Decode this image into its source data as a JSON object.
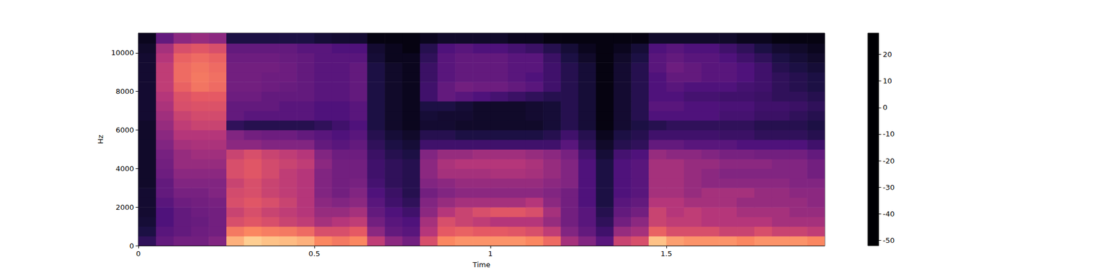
{
  "chart_data": {
    "type": "spectrogram",
    "xlabel": "Time",
    "ylabel": "Hz",
    "xlim": [
      0,
      1.95
    ],
    "ylim": [
      0,
      11025
    ],
    "xticks": [
      0,
      0.5,
      1,
      1.5
    ],
    "yticks": [
      0,
      2000,
      4000,
      6000,
      8000,
      10000
    ],
    "colorbar": {
      "range": [
        -52,
        28
      ],
      "ticks": [
        -50,
        -40,
        -30,
        -20,
        -10,
        0,
        10,
        20
      ]
    },
    "cells": {
      "time_bins": [
        0,
        0.05,
        0.1,
        0.15,
        0.2,
        0.25,
        0.3,
        0.35,
        0.4,
        0.45,
        0.5,
        0.55,
        0.6,
        0.65,
        0.7,
        0.75,
        0.8,
        0.85,
        0.9,
        0.95,
        1,
        1.05,
        1.1,
        1.15,
        1.2,
        1.25,
        1.3,
        1.35,
        1.4,
        1.45,
        1.5,
        1.55,
        1.6,
        1.65,
        1.7,
        1.75,
        1.8,
        1.85,
        1.9,
        1.95
      ],
      "freq_bins": [
        0,
        500,
        1000,
        1500,
        2000,
        2500,
        3000,
        3500,
        4000,
        4500,
        5000,
        5500,
        6000,
        6500,
        7000,
        7500,
        8000,
        8500,
        9000,
        9500,
        10000,
        10500,
        11025
      ],
      "values": [
        [
          -38,
          -28,
          -25,
          -25,
          -22,
          15,
          20,
          18,
          17,
          15,
          8,
          5,
          8,
          -10,
          -20,
          -25,
          -5,
          8,
          10,
          10,
          10,
          10,
          8,
          2,
          -15,
          -22,
          -30,
          -8,
          -5,
          18,
          12,
          10,
          10,
          10,
          8,
          10,
          10,
          10,
          8
        ],
        [
          -42,
          -30,
          -28,
          -26,
          -25,
          5,
          8,
          6,
          5,
          2,
          -5,
          -5,
          -2,
          -20,
          -28,
          -30,
          -12,
          -2,
          0,
          -2,
          -2,
          -3,
          -5,
          -10,
          -22,
          -28,
          -35,
          -18,
          -15,
          0,
          -5,
          -5,
          -5,
          -8,
          -8,
          -5,
          -8,
          -8,
          -10
        ],
        [
          -44,
          -32,
          -28,
          -27,
          -25,
          -5,
          -3,
          -5,
          -8,
          -10,
          -15,
          -12,
          -10,
          -25,
          -30,
          -32,
          -15,
          -5,
          -8,
          -10,
          -12,
          -12,
          -12,
          -18,
          -25,
          -30,
          -38,
          -25,
          -20,
          -8,
          -10,
          -10,
          -12,
          -12,
          -12,
          -12,
          -15,
          -15,
          -15
        ],
        [
          -45,
          -32,
          -28,
          -26,
          -25,
          -8,
          -5,
          -8,
          -10,
          -12,
          -18,
          -18,
          -15,
          -28,
          -32,
          -35,
          -20,
          -12,
          -8,
          -5,
          -3,
          -3,
          -5,
          -15,
          -25,
          -30,
          -40,
          -28,
          -25,
          -8,
          -12,
          -10,
          -12,
          -12,
          -15,
          -15,
          -15,
          -18,
          -18
        ],
        [
          -45,
          -30,
          -26,
          -25,
          -24,
          -5,
          -3,
          -5,
          -8,
          -12,
          -20,
          -22,
          -20,
          -30,
          -35,
          -38,
          -22,
          -18,
          -15,
          -15,
          -15,
          -15,
          -12,
          -20,
          -25,
          -32,
          -42,
          -30,
          -28,
          -12,
          -12,
          -15,
          -15,
          -15,
          -18,
          -18,
          -18,
          -18,
          -20
        ],
        [
          -45,
          -28,
          -24,
          -24,
          -22,
          -6,
          -5,
          -8,
          -10,
          -12,
          -22,
          -25,
          -22,
          -32,
          -36,
          -40,
          -25,
          -22,
          -20,
          -20,
          -20,
          -20,
          -20,
          -22,
          -25,
          -32,
          -42,
          -32,
          -30,
          -15,
          -15,
          -18,
          -15,
          -15,
          -15,
          -18,
          -18,
          -20,
          -20
        ],
        [
          -46,
          -28,
          -22,
          -22,
          -22,
          -8,
          -5,
          -8,
          -10,
          -12,
          -22,
          -25,
          -24,
          -34,
          -38,
          -40,
          -22,
          -20,
          -18,
          -18,
          -18,
          -18,
          -18,
          -20,
          -22,
          -32,
          -42,
          -32,
          -30,
          -15,
          -15,
          -18,
          -20,
          -20,
          -20,
          -20,
          -20,
          -22,
          -22
        ],
        [
          -46,
          -26,
          -20,
          -20,
          -20,
          -5,
          -3,
          -6,
          -10,
          -12,
          -22,
          -25,
          -25,
          -35,
          -38,
          -40,
          -20,
          -15,
          -15,
          -15,
          -14,
          -14,
          -15,
          -18,
          -22,
          -32,
          -42,
          -32,
          -30,
          -15,
          -15,
          -18,
          -20,
          -22,
          -22,
          -22,
          -22,
          -22,
          -25
        ],
        [
          -46,
          -25,
          -18,
          -18,
          -18,
          -5,
          -3,
          -6,
          -8,
          -10,
          -20,
          -25,
          -25,
          -35,
          -38,
          -40,
          -20,
          -14,
          -12,
          -12,
          -12,
          -12,
          -14,
          -18,
          -22,
          -32,
          -42,
          -32,
          -30,
          -15,
          -15,
          -18,
          -18,
          -20,
          -20,
          -20,
          -22,
          -22,
          -25
        ],
        [
          -46,
          -24,
          -18,
          -16,
          -16,
          -8,
          -5,
          -8,
          -10,
          -12,
          -22,
          -26,
          -26,
          -36,
          -40,
          -42,
          -22,
          -18,
          -18,
          -16,
          -16,
          -16,
          -18,
          -20,
          -24,
          -34,
          -44,
          -34,
          -32,
          -18,
          -20,
          -20,
          -22,
          -24,
          -24,
          -25,
          -25,
          -25,
          -28
        ],
        [
          -46,
          -22,
          -15,
          -14,
          -14,
          -20,
          -20,
          -22,
          -22,
          -22,
          -28,
          -30,
          -28,
          -38,
          -42,
          -44,
          -35,
          -35,
          -35,
          -35,
          -35,
          -35,
          -35,
          -35,
          -30,
          -38,
          -46,
          -40,
          -38,
          -28,
          -28,
          -30,
          -30,
          -30,
          -32,
          -32,
          -32,
          -32,
          -35
        ],
        [
          -46,
          -20,
          -12,
          -12,
          -12,
          -22,
          -25,
          -26,
          -26,
          -28,
          -30,
          -32,
          -30,
          -40,
          -44,
          -46,
          -40,
          -40,
          -42,
          -42,
          -42,
          -42,
          -42,
          -40,
          -35,
          -40,
          -48,
          -42,
          -40,
          -35,
          -35,
          -35,
          -35,
          -36,
          -36,
          -38,
          -38,
          -38,
          -40
        ],
        [
          -46,
          -18,
          -10,
          -8,
          -8,
          -38,
          -40,
          -40,
          -40,
          -40,
          -38,
          -35,
          -32,
          -42,
          -46,
          -48,
          -45,
          -45,
          -46,
          -46,
          -46,
          -46,
          -46,
          -44,
          -40,
          -44,
          -50,
          -45,
          -42,
          -40,
          -38,
          -38,
          -38,
          -38,
          -38,
          -40,
          -40,
          -40,
          -42
        ],
        [
          -45,
          -16,
          -8,
          -6,
          -6,
          -28,
          -30,
          -30,
          -30,
          -30,
          -32,
          -32,
          -30,
          -42,
          -46,
          -48,
          -44,
          -45,
          -45,
          -46,
          -46,
          -46,
          -45,
          -44,
          -40,
          -44,
          -50,
          -45,
          -40,
          -32,
          -32,
          -32,
          -32,
          -34,
          -34,
          -36,
          -36,
          -38,
          -40
        ],
        [
          -45,
          -14,
          -5,
          -4,
          -4,
          -28,
          -28,
          -28,
          -30,
          -30,
          -32,
          -32,
          -30,
          -42,
          -46,
          -48,
          -42,
          -42,
          -44,
          -46,
          -46,
          -46,
          -45,
          -44,
          -40,
          -44,
          -50,
          -45,
          -40,
          -30,
          -30,
          -32,
          -32,
          -33,
          -33,
          -35,
          -35,
          -36,
          -38
        ],
        [
          -45,
          -12,
          -4,
          -2,
          -2,
          -26,
          -26,
          -28,
          -28,
          -28,
          -30,
          -30,
          -28,
          -42,
          -46,
          -48,
          -35,
          -28,
          -30,
          -32,
          -34,
          -36,
          -38,
          -40,
          -40,
          -44,
          -50,
          -45,
          -40,
          -32,
          -32,
          -34,
          -34,
          -35,
          -35,
          -36,
          -38,
          -38,
          -40
        ],
        [
          -45,
          -10,
          0,
          4,
          2,
          -25,
          -25,
          -26,
          -27,
          -28,
          -30,
          -30,
          -28,
          -42,
          -46,
          -48,
          -35,
          -28,
          -25,
          -26,
          -26,
          -28,
          -30,
          -35,
          -40,
          -44,
          -50,
          -45,
          -40,
          -32,
          -30,
          -32,
          -32,
          -32,
          -34,
          -35,
          -38,
          -40,
          -42
        ],
        [
          -45,
          -10,
          2,
          5,
          3,
          -25,
          -25,
          -26,
          -26,
          -28,
          -30,
          -30,
          -28,
          -42,
          -46,
          -48,
          -36,
          -30,
          -28,
          -28,
          -28,
          -30,
          -32,
          -35,
          -40,
          -44,
          -50,
          -45,
          -40,
          -32,
          -28,
          -28,
          -30,
          -30,
          -32,
          -35,
          -38,
          -40,
          -42
        ],
        [
          -45,
          -10,
          2,
          4,
          2,
          -25,
          -25,
          -25,
          -26,
          -28,
          -30,
          -30,
          -28,
          -42,
          -46,
          -48,
          -36,
          -30,
          -28,
          -28,
          -28,
          -30,
          -30,
          -35,
          -40,
          -44,
          -50,
          -45,
          -40,
          -30,
          -26,
          -28,
          -30,
          -30,
          -32,
          -35,
          -40,
          -42,
          -44
        ],
        [
          -45,
          -12,
          0,
          2,
          0,
          -26,
          -26,
          -26,
          -27,
          -28,
          -30,
          -30,
          -30,
          -44,
          -48,
          -48,
          -38,
          -30,
          -28,
          -28,
          -28,
          -30,
          -30,
          -36,
          -42,
          -46,
          -50,
          -46,
          -42,
          -30,
          -28,
          -30,
          -30,
          -32,
          -35,
          -38,
          -42,
          -44,
          -46
        ],
        [
          -46,
          -15,
          -5,
          -3,
          -5,
          -28,
          -28,
          -28,
          -28,
          -30,
          -30,
          -32,
          -32,
          -45,
          -48,
          -50,
          -40,
          -32,
          -30,
          -32,
          -32,
          -34,
          -36,
          -40,
          -44,
          -48,
          -50,
          -48,
          -44,
          -32,
          -30,
          -32,
          -32,
          -35,
          -38,
          -42,
          -45,
          -46,
          -48
        ],
        [
          -48,
          -28,
          -20,
          -18,
          -20,
          -42,
          -42,
          -42,
          -42,
          -42,
          -44,
          -45,
          -45,
          -50,
          -50,
          -50,
          -48,
          -46,
          -46,
          -46,
          -46,
          -48,
          -48,
          -50,
          -50,
          -50,
          -50,
          -50,
          -50,
          -46,
          -46,
          -46,
          -46,
          -46,
          -48,
          -48,
          -50,
          -50,
          -50
        ]
      ]
    }
  }
}
